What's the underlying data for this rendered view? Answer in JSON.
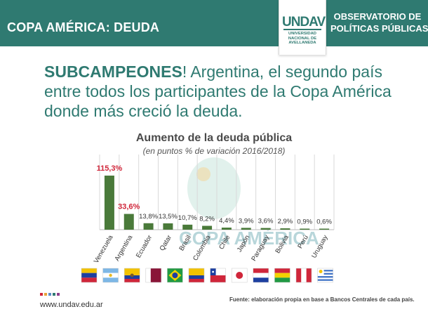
{
  "header": {
    "title": "COPA AMÉRICA: DEUDA",
    "logo": {
      "mark": "UNDAV",
      "lines": [
        "UNIVERSIDAD",
        "NACIONAL DE",
        "AVELLANEDA"
      ]
    },
    "org_line1": "OBSERVATORIO DE",
    "org_line2": "POLÍTICAS PÚBLICAS"
  },
  "headline": {
    "bold": "SUBCAMPEONES",
    "rest": "! Argentina, el segundo país entre todos los participantes de la Copa América donde más creció la deuda."
  },
  "watermark": "COPA AMÉRICA",
  "colors": {
    "brand": "#2f7a71",
    "bar": "#4a7a3a",
    "highlight": "#d0263a",
    "label": "#333333"
  },
  "chart_data": {
    "type": "bar",
    "title": "Aumento de la deuda pública",
    "subtitle": "(en puntos % de variación 2016/2018)",
    "categories": [
      "Venezuela",
      "Argentina",
      "Ecuador",
      "Qatar",
      "Brasil",
      "Colombia",
      "Chile",
      "Japón",
      "Paraguay",
      "Bolivia",
      "Perú",
      "Uruguay"
    ],
    "values": [
      115.3,
      33.6,
      13.8,
      13.5,
      10.7,
      8.2,
      4.4,
      3.9,
      3.6,
      2.9,
      0.9,
      0.6
    ],
    "labels": [
      "115,3%",
      "33,6%",
      "13,8%",
      "13,5%",
      "10,7%",
      "8,2%",
      "4,4%",
      "3,9%",
      "3,6%",
      "2,9%",
      "0,9%",
      "0,6%"
    ],
    "highlighted": [
      "Venezuela",
      "Argentina"
    ],
    "flags": [
      "venezuela-flag",
      "argentina-flag",
      "ecuador-flag",
      "qatar-flag",
      "brazil-flag",
      "colombia-flag",
      "chile-flag",
      "japan-flag",
      "paraguay-flag",
      "bolivia-flag",
      "peru-flag",
      "uruguay-flag"
    ],
    "ylim": [
      0,
      115.3
    ],
    "grid": true
  },
  "footer": {
    "url": "www.undav.edu.ar",
    "source": "Fuente: elaboración propia en base a Bancos Centrales de cada país."
  }
}
